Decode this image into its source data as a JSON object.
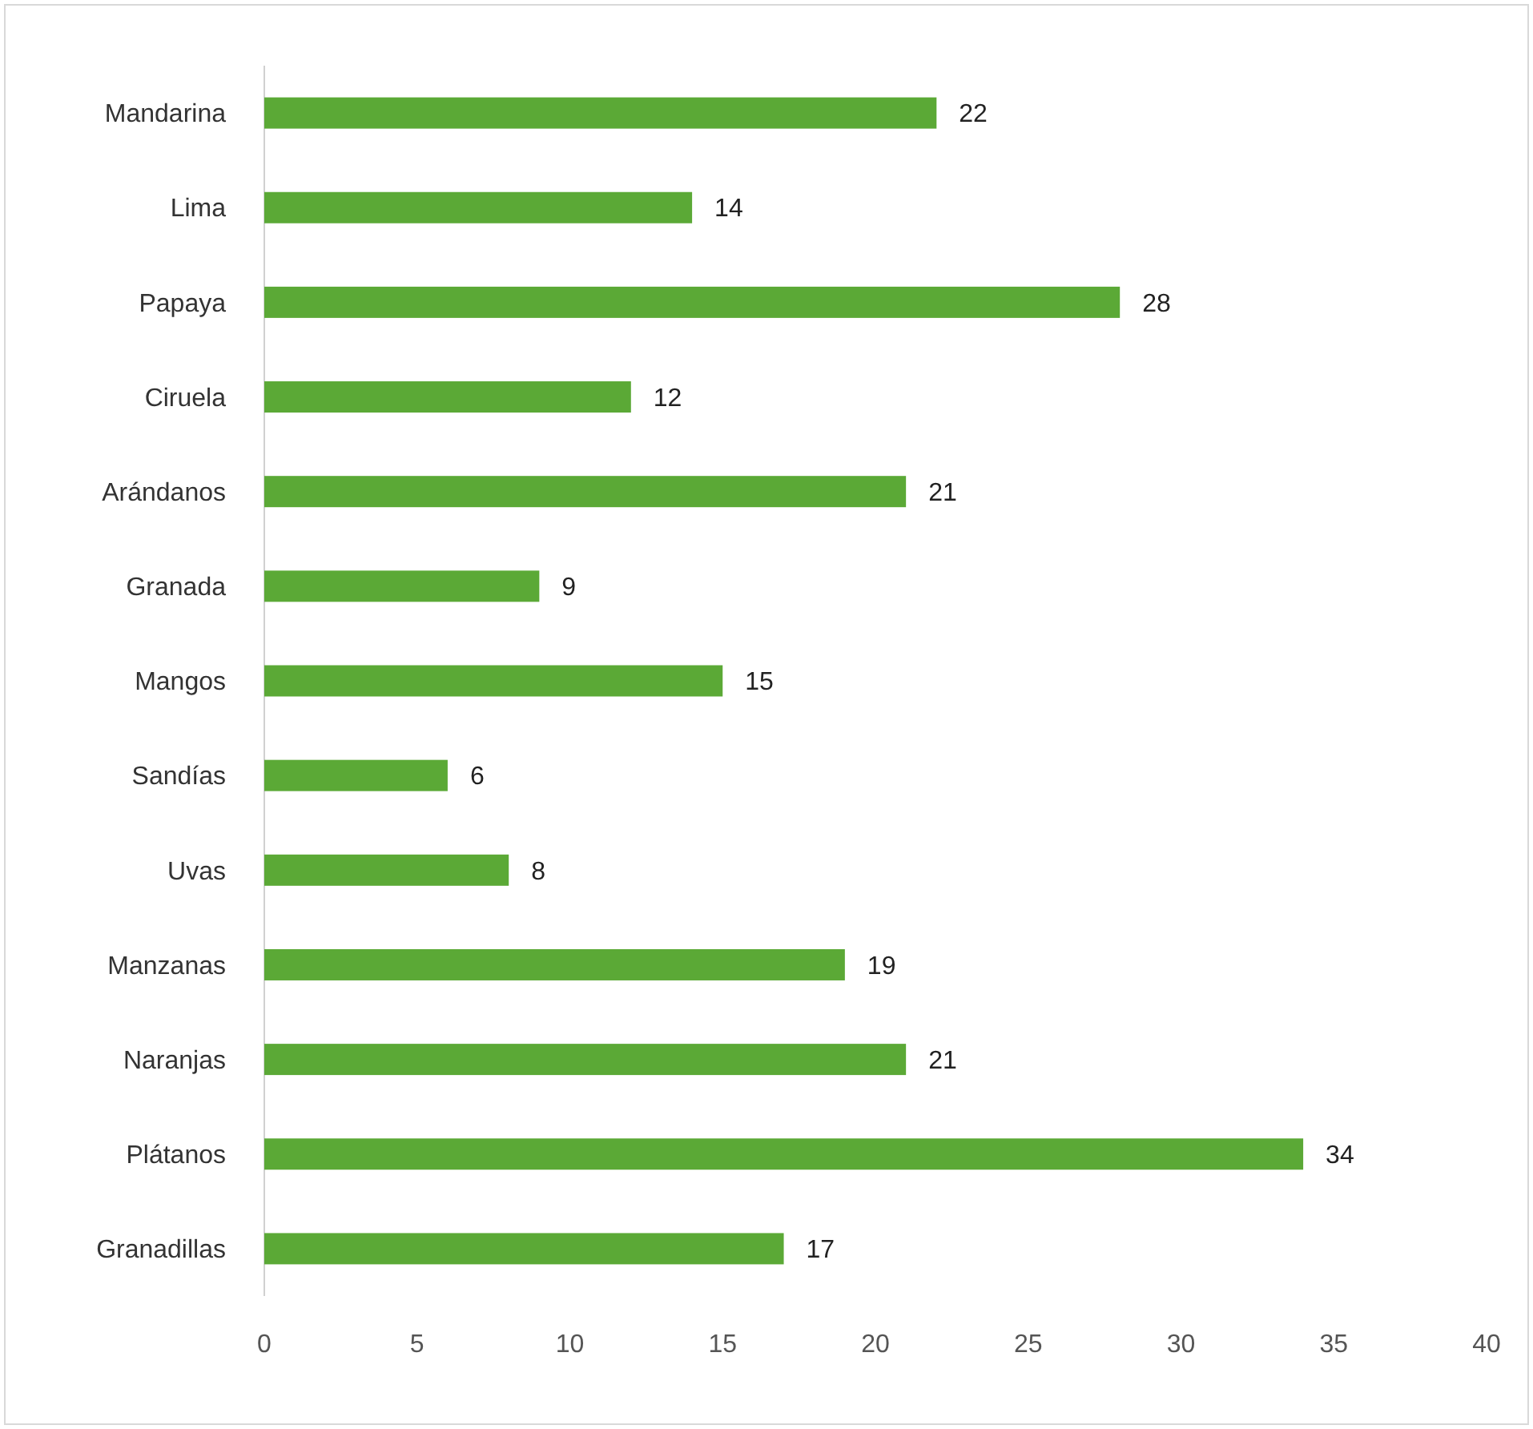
{
  "chart_data": {
    "type": "bar",
    "orientation": "horizontal",
    "categories": [
      "Mandarina",
      "Lima",
      "Papaya",
      "Ciruela",
      "Arándanos",
      "Granada",
      "Mangos",
      "Sandías",
      "Uvas",
      "Manzanas",
      "Naranjas",
      "Plátanos",
      "Granadillas"
    ],
    "values": [
      22,
      14,
      28,
      12,
      21,
      9,
      15,
      6,
      8,
      19,
      21,
      34,
      17
    ],
    "color": "#5ba936",
    "xlim": [
      0,
      40
    ],
    "xticks": [
      0,
      5,
      10,
      15,
      20,
      25,
      30,
      35,
      40
    ],
    "data_labels": true
  }
}
